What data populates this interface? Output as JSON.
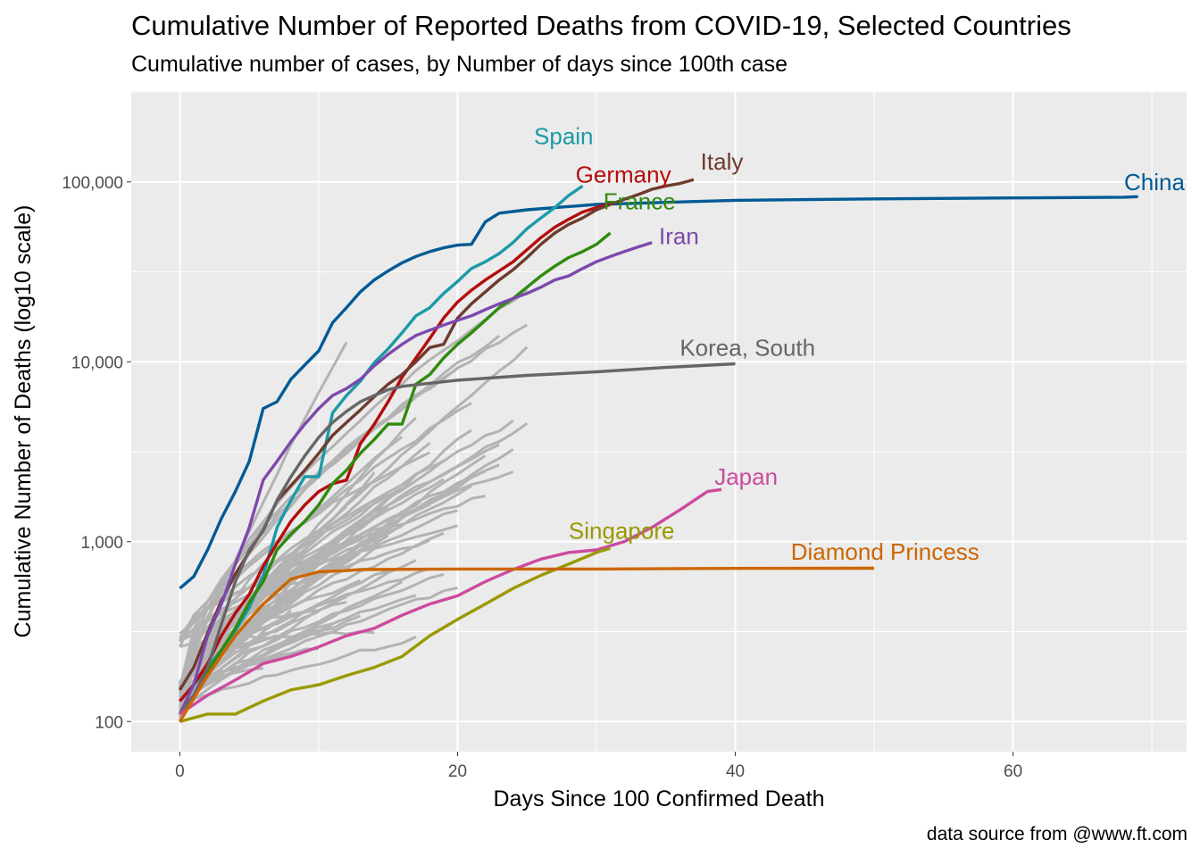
{
  "chart_data": {
    "type": "line",
    "title": "Cumulative Number of Reported Deaths from COVID-19, Selected Countries",
    "subtitle": "Cumulative number of cases, by Number of days since 100th case",
    "xlabel": "Days Since 100 Confirmed Death",
    "ylabel": "Cumulative Number of Deaths (log10 scale)",
    "caption": "data source from @www.ft.com",
    "x_scale": "linear",
    "y_scale": "log10",
    "xlim": [
      -3.5,
      72.5
    ],
    "ylim": [
      68,
      320000
    ],
    "x_ticks": [
      0,
      20,
      40,
      60
    ],
    "x_tick_labels": [
      "0",
      "20",
      "40",
      "60"
    ],
    "x_minor_ticks": [
      10,
      30,
      50,
      70
    ],
    "y_ticks": [
      100,
      1000,
      10000,
      100000
    ],
    "y_tick_labels": [
      "100",
      "1,000",
      "10,000",
      "100,000"
    ],
    "y_minor_ticks": [
      316.2,
      3162.3,
      31623,
      316228
    ],
    "grid": true,
    "legend": "none (direct labels)",
    "panel_background": "#ebebeb",
    "grid_color": "#ffffff",
    "background_series_color": "#b3b3b3",
    "series": [
      {
        "name": "China",
        "color": "#005a95",
        "label_at": [
          68,
          100000
        ],
        "points": [
          [
            0,
            550
          ],
          [
            1,
            640
          ],
          [
            2,
            900
          ],
          [
            3,
            1350
          ],
          [
            4,
            1900
          ],
          [
            5,
            2800
          ],
          [
            6,
            5500
          ],
          [
            7,
            6000
          ],
          [
            8,
            8000
          ],
          [
            9,
            9600
          ],
          [
            10,
            11500
          ],
          [
            11,
            16500
          ],
          [
            12,
            20000
          ],
          [
            13,
            24500
          ],
          [
            14,
            28500
          ],
          [
            15,
            32000
          ],
          [
            16,
            35500
          ],
          [
            17,
            38500
          ],
          [
            18,
            41000
          ],
          [
            19,
            43000
          ],
          [
            20,
            44500
          ],
          [
            21,
            45000
          ],
          [
            22,
            60000
          ],
          [
            23,
            67000
          ],
          [
            25,
            70000
          ],
          [
            30,
            75000
          ],
          [
            35,
            77000
          ],
          [
            40,
            79000
          ],
          [
            50,
            80500
          ],
          [
            60,
            81500
          ],
          [
            68,
            82200
          ],
          [
            69,
            82800
          ]
        ]
      },
      {
        "name": "Spain",
        "color": "#1a9aa8",
        "label_at": [
          25.5,
          180000
        ],
        "points": [
          [
            0,
            130
          ],
          [
            1,
            160
          ],
          [
            2,
            200
          ],
          [
            3,
            250
          ],
          [
            4,
            320
          ],
          [
            5,
            430
          ],
          [
            6,
            650
          ],
          [
            7,
            1200
          ],
          [
            8,
            1700
          ],
          [
            9,
            2300
          ],
          [
            10,
            2300
          ],
          [
            11,
            5200
          ],
          [
            12,
            6500
          ],
          [
            13,
            7800
          ],
          [
            14,
            9900
          ],
          [
            15,
            11800
          ],
          [
            16,
            14500
          ],
          [
            17,
            18000
          ],
          [
            18,
            20000
          ],
          [
            19,
            24000
          ],
          [
            20,
            28000
          ],
          [
            21,
            33000
          ],
          [
            22,
            36000
          ],
          [
            23,
            40000
          ],
          [
            24,
            46000
          ],
          [
            25,
            55000
          ],
          [
            26,
            63000
          ],
          [
            27,
            72000
          ],
          [
            28,
            84000
          ],
          [
            29,
            95000
          ]
        ]
      },
      {
        "name": "Germany",
        "color": "#b50c0c",
        "label_at": [
          28.5,
          110000
        ],
        "points": [
          [
            0,
            130
          ],
          [
            1,
            160
          ],
          [
            2,
            210
          ],
          [
            3,
            300
          ],
          [
            4,
            400
          ],
          [
            5,
            510
          ],
          [
            6,
            730
          ],
          [
            7,
            980
          ],
          [
            8,
            1300
          ],
          [
            9,
            1600
          ],
          [
            10,
            1900
          ],
          [
            11,
            2100
          ],
          [
            12,
            2200
          ],
          [
            13,
            3500
          ],
          [
            14,
            4500
          ],
          [
            15,
            6000
          ],
          [
            16,
            8200
          ],
          [
            17,
            10500
          ],
          [
            18,
            13500
          ],
          [
            19,
            17500
          ],
          [
            20,
            21500
          ],
          [
            21,
            25000
          ],
          [
            22,
            28500
          ],
          [
            23,
            32000
          ],
          [
            24,
            36000
          ],
          [
            25,
            42000
          ],
          [
            26,
            49000
          ],
          [
            27,
            56000
          ],
          [
            28,
            62000
          ],
          [
            29,
            68000
          ],
          [
            30,
            72000
          ],
          [
            31,
            76000
          ]
        ]
      },
      {
        "name": "Italy",
        "color": "#6e3b2e",
        "label_at": [
          37.5,
          130000
        ],
        "points": [
          [
            0,
            150
          ],
          [
            1,
            200
          ],
          [
            2,
            310
          ],
          [
            3,
            470
          ],
          [
            4,
            660
          ],
          [
            5,
            880
          ],
          [
            6,
            1160
          ],
          [
            7,
            1690
          ],
          [
            8,
            2050
          ],
          [
            9,
            2500
          ],
          [
            10,
            3100
          ],
          [
            11,
            3900
          ],
          [
            12,
            4600
          ],
          [
            13,
            5400
          ],
          [
            14,
            6400
          ],
          [
            15,
            7500
          ],
          [
            16,
            8500
          ],
          [
            17,
            10000
          ],
          [
            18,
            12000
          ],
          [
            19,
            12500
          ],
          [
            20,
            17500
          ],
          [
            21,
            21000
          ],
          [
            22,
            24500
          ],
          [
            23,
            28500
          ],
          [
            24,
            32500
          ],
          [
            25,
            38000
          ],
          [
            26,
            45000
          ],
          [
            27,
            52000
          ],
          [
            28,
            58000
          ],
          [
            29,
            63000
          ],
          [
            30,
            70000
          ],
          [
            31,
            75000
          ],
          [
            32,
            80000
          ],
          [
            33,
            85000
          ],
          [
            34,
            91000
          ],
          [
            35,
            95000
          ],
          [
            36,
            98000
          ],
          [
            37,
            103000
          ]
        ]
      },
      {
        "name": "France",
        "color": "#2e8b0f",
        "label_at": [
          30.5,
          78000
        ],
        "points": [
          [
            0,
            110
          ],
          [
            1,
            140
          ],
          [
            2,
            190
          ],
          [
            3,
            250
          ],
          [
            4,
            330
          ],
          [
            5,
            460
          ],
          [
            6,
            600
          ],
          [
            7,
            900
          ],
          [
            8,
            1100
          ],
          [
            9,
            1300
          ],
          [
            10,
            1600
          ],
          [
            11,
            2100
          ],
          [
            12,
            2500
          ],
          [
            13,
            3100
          ],
          [
            14,
            3700
          ],
          [
            15,
            4500
          ],
          [
            16,
            4500
          ],
          [
            17,
            7500
          ],
          [
            18,
            8500
          ],
          [
            19,
            10500
          ],
          [
            20,
            12500
          ],
          [
            21,
            14500
          ],
          [
            22,
            17000
          ],
          [
            23,
            20000
          ],
          [
            24,
            22500
          ],
          [
            25,
            26000
          ],
          [
            26,
            30000
          ],
          [
            27,
            34000
          ],
          [
            28,
            38000
          ],
          [
            29,
            41000
          ],
          [
            30,
            45000
          ],
          [
            31,
            52000
          ]
        ]
      },
      {
        "name": "Iran",
        "color": "#7d48ad",
        "label_at": [
          34.5,
          50000
        ],
        "points": [
          [
            0,
            110
          ],
          [
            1,
            160
          ],
          [
            2,
            300
          ],
          [
            3,
            450
          ],
          [
            4,
            750
          ],
          [
            5,
            1200
          ],
          [
            6,
            2200
          ],
          [
            7,
            2800
          ],
          [
            8,
            3600
          ],
          [
            9,
            4500
          ],
          [
            10,
            5500
          ],
          [
            11,
            6500
          ],
          [
            12,
            7100
          ],
          [
            13,
            8000
          ],
          [
            14,
            9500
          ],
          [
            15,
            11000
          ],
          [
            16,
            12500
          ],
          [
            17,
            14000
          ],
          [
            18,
            15000
          ],
          [
            19,
            16000
          ],
          [
            20,
            17000
          ],
          [
            21,
            18000
          ],
          [
            22,
            19500
          ],
          [
            23,
            21000
          ],
          [
            24,
            22500
          ],
          [
            25,
            24000
          ],
          [
            26,
            26000
          ],
          [
            27,
            28500
          ],
          [
            28,
            30000
          ],
          [
            29,
            33000
          ],
          [
            30,
            36000
          ],
          [
            31,
            38500
          ],
          [
            32,
            41000
          ],
          [
            33,
            43500
          ],
          [
            34,
            46000
          ]
        ]
      },
      {
        "name": "Korea, South",
        "color": "#666666",
        "label_at": [
          36,
          12000
        ],
        "points": [
          [
            0,
            110
          ],
          [
            1,
            140
          ],
          [
            2,
            200
          ],
          [
            3,
            350
          ],
          [
            4,
            600
          ],
          [
            5,
            900
          ],
          [
            6,
            1150
          ],
          [
            7,
            1700
          ],
          [
            8,
            2300
          ],
          [
            9,
            3000
          ],
          [
            10,
            3800
          ],
          [
            11,
            4600
          ],
          [
            12,
            5300
          ],
          [
            13,
            6000
          ],
          [
            14,
            6500
          ],
          [
            15,
            7000
          ],
          [
            16,
            7300
          ],
          [
            18,
            7600
          ],
          [
            20,
            7900
          ],
          [
            25,
            8400
          ],
          [
            30,
            8800
          ],
          [
            35,
            9300
          ],
          [
            40,
            9750
          ]
        ]
      },
      {
        "name": "Japan",
        "color": "#cc4a9e",
        "label_at": [
          38.5,
          2300
        ],
        "points": [
          [
            0,
            110
          ],
          [
            2,
            140
          ],
          [
            4,
            170
          ],
          [
            6,
            210
          ],
          [
            8,
            230
          ],
          [
            10,
            260
          ],
          [
            12,
            300
          ],
          [
            14,
            330
          ],
          [
            16,
            390
          ],
          [
            18,
            450
          ],
          [
            20,
            500
          ],
          [
            22,
            600
          ],
          [
            24,
            700
          ],
          [
            26,
            800
          ],
          [
            28,
            870
          ],
          [
            30,
            900
          ],
          [
            32,
            1000
          ],
          [
            34,
            1200
          ],
          [
            36,
            1500
          ],
          [
            38,
            1900
          ],
          [
            39,
            1950
          ]
        ]
      },
      {
        "name": "Singapore",
        "color": "#999900",
        "label_at": [
          28,
          1150
        ],
        "points": [
          [
            0,
            100
          ],
          [
            2,
            110
          ],
          [
            4,
            110
          ],
          [
            6,
            130
          ],
          [
            8,
            150
          ],
          [
            10,
            160
          ],
          [
            12,
            180
          ],
          [
            14,
            200
          ],
          [
            16,
            230
          ],
          [
            18,
            300
          ],
          [
            20,
            370
          ],
          [
            22,
            450
          ],
          [
            24,
            550
          ],
          [
            26,
            650
          ],
          [
            28,
            750
          ],
          [
            30,
            870
          ],
          [
            31,
            920
          ]
        ]
      },
      {
        "name": "Diamond Princess",
        "color": "#cc6600",
        "label_at": [
          44,
          880
        ],
        "points": [
          [
            0,
            100
          ],
          [
            2,
            180
          ],
          [
            4,
            300
          ],
          [
            6,
            450
          ],
          [
            8,
            620
          ],
          [
            10,
            680
          ],
          [
            12,
            690
          ],
          [
            13,
            700
          ],
          [
            20,
            705
          ],
          [
            30,
            705
          ],
          [
            40,
            710
          ],
          [
            50,
            712
          ]
        ]
      }
    ]
  }
}
